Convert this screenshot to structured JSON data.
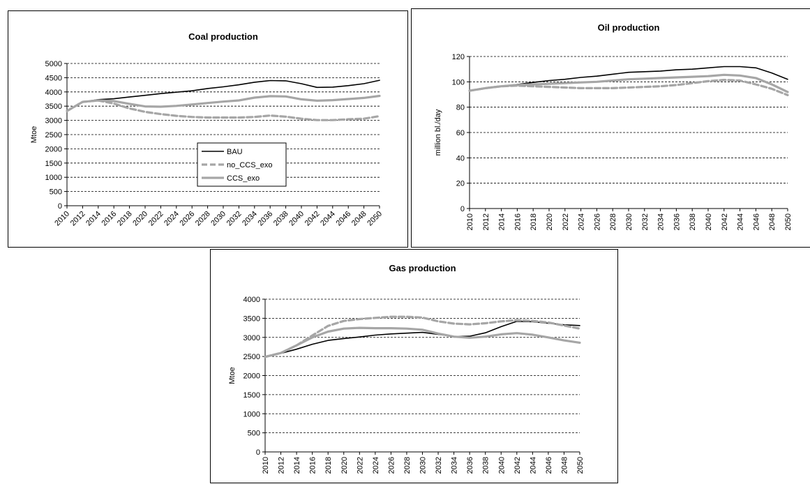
{
  "x_years": [
    2010,
    2012,
    2014,
    2016,
    2018,
    2020,
    2022,
    2024,
    2026,
    2028,
    2030,
    2032,
    2034,
    2036,
    2038,
    2040,
    2042,
    2044,
    2046,
    2048,
    2050
  ],
  "styles": {
    "BAU": {
      "color": "#000000"
    },
    "no_CCS_exo": {
      "color": "#a6a6a6"
    },
    "CCS_exo": {
      "color": "#a6a6a6"
    }
  },
  "chart_data": [
    {
      "type": "line",
      "title": "Coal production",
      "ylabel": "Mtoe",
      "xlabel": "",
      "ylim": [
        0,
        5000
      ],
      "yticks": [
        0,
        500,
        1000,
        1500,
        2000,
        2500,
        3000,
        3500,
        4000,
        4500,
        5000
      ],
      "grid": true,
      "legend": "center",
      "series": [
        {
          "name": "BAU",
          "values": [
            3330,
            3650,
            3730,
            3760,
            3820,
            3880,
            3940,
            3990,
            4040,
            4120,
            4180,
            4250,
            4340,
            4400,
            4390,
            4290,
            4160,
            4170,
            4220,
            4290,
            4410
          ]
        },
        {
          "name": "no_CCS_exo",
          "values": [
            3330,
            3650,
            3700,
            3590,
            3420,
            3300,
            3220,
            3160,
            3120,
            3100,
            3100,
            3100,
            3120,
            3170,
            3130,
            3060,
            3010,
            3010,
            3040,
            3060,
            3150
          ]
        },
        {
          "name": "CCS_exo",
          "values": [
            3330,
            3650,
            3700,
            3680,
            3580,
            3490,
            3480,
            3510,
            3560,
            3610,
            3660,
            3700,
            3800,
            3850,
            3840,
            3740,
            3690,
            3710,
            3750,
            3790,
            3860
          ]
        }
      ]
    },
    {
      "type": "line",
      "title": "Oil production",
      "ylabel": "million bl./day",
      "xlabel": "",
      "ylim": [
        0,
        120
      ],
      "yticks": [
        0,
        20,
        40,
        60,
        80,
        100,
        120
      ],
      "grid": true,
      "legend": "none",
      "series": [
        {
          "values": [
            93,
            95,
            96.5,
            98,
            99.5,
            101,
            102,
            103.5,
            104.5,
            106,
            107.5,
            108,
            108.5,
            109.5,
            110,
            111,
            112,
            112,
            111,
            107,
            102
          ]
        },
        {
          "values": [
            93,
            95,
            96.5,
            97,
            96.5,
            96,
            95.5,
            95,
            95,
            95,
            95.5,
            96,
            96.5,
            97.5,
            99,
            100.5,
            101.5,
            101,
            98,
            94.5,
            89.5
          ]
        },
        {
          "values": [
            93,
            95,
            96.5,
            97.5,
            98,
            98.5,
            99,
            99.5,
            100,
            101,
            102,
            102.5,
            103,
            103.5,
            104,
            104.5,
            105.5,
            105,
            103,
            98,
            92
          ]
        }
      ]
    },
    {
      "type": "line",
      "title": "Gas production",
      "ylabel": "Mtoe",
      "xlabel": "",
      "ylim": [
        0,
        4000
      ],
      "yticks": [
        0,
        500,
        1000,
        1500,
        2000,
        2500,
        3000,
        3500,
        4000
      ],
      "grid": true,
      "legend": "none",
      "series": [
        {
          "values": [
            2490,
            2580,
            2690,
            2820,
            2920,
            2970,
            3010,
            3060,
            3090,
            3110,
            3130,
            3080,
            3020,
            3030,
            3120,
            3280,
            3420,
            3410,
            3370,
            3330,
            3310
          ]
        },
        {
          "values": [
            2490,
            2590,
            2790,
            3050,
            3300,
            3430,
            3480,
            3510,
            3540,
            3540,
            3520,
            3420,
            3360,
            3340,
            3370,
            3420,
            3450,
            3430,
            3390,
            3310,
            3230
          ]
        },
        {
          "values": [
            2490,
            2590,
            2790,
            3000,
            3150,
            3230,
            3250,
            3240,
            3240,
            3230,
            3200,
            3100,
            3020,
            2990,
            3020,
            3080,
            3110,
            3070,
            3000,
            2920,
            2860
          ]
        }
      ]
    }
  ]
}
